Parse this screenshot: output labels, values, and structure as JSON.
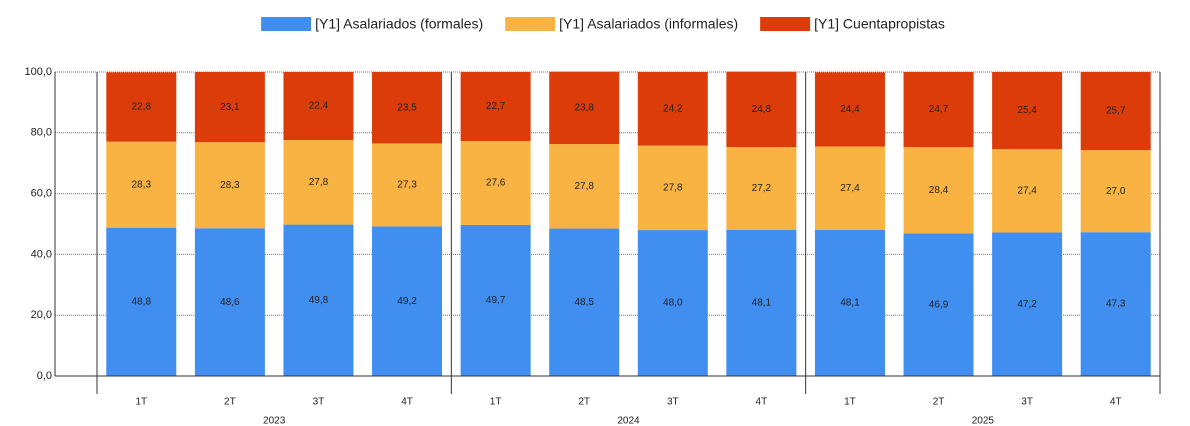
{
  "chart_data": {
    "type": "stacked_bar",
    "categories": [
      "1T",
      "2T",
      "3T",
      "4T",
      "1T",
      "2T",
      "3T",
      "4T",
      "1T",
      "2T",
      "3T",
      "4T"
    ],
    "groups": [
      "2023",
      "2024",
      "2025"
    ],
    "series": [
      {
        "name": "[Y1] Asalariados (formales)",
        "color": "#3f8ef0",
        "values": [
          48.8,
          48.6,
          49.8,
          49.2,
          49.7,
          48.5,
          48.0,
          48.1,
          48.1,
          46.9,
          47.2,
          47.3
        ],
        "value_labels": [
          "48,8",
          "48,6",
          "49,8",
          "49,2",
          "49,7",
          "48,5",
          "48,0",
          "48,1",
          "48,1",
          "46,9",
          "47,2",
          "47,3"
        ]
      },
      {
        "name": "[Y1] Asalariados (informales)",
        "color": "#f9b342",
        "values": [
          28.3,
          28.3,
          27.8,
          27.3,
          27.6,
          27.8,
          27.8,
          27.2,
          27.4,
          28.4,
          27.4,
          27.0
        ],
        "value_labels": [
          "28,3",
          "28,3",
          "27,8",
          "27,3",
          "27,6",
          "27,8",
          "27,8",
          "27,2",
          "27,4",
          "28,4",
          "27,4",
          "27,0"
        ]
      },
      {
        "name": "[Y1] Cuentapropistas",
        "color": "#dc3c0a",
        "values": [
          22.8,
          23.1,
          22.4,
          23.5,
          22.7,
          23.8,
          24.2,
          24.8,
          24.4,
          24.7,
          25.4,
          25.7
        ],
        "value_labels": [
          "22,8",
          "23,1",
          "22,4",
          "23,5",
          "22,7",
          "23,8",
          "24,2",
          "24,8",
          "24,4",
          "24,7",
          "25,4",
          "25,7"
        ]
      }
    ],
    "ylim": [
      0,
      100
    ],
    "yticks": [
      {
        "value": 0,
        "label": "0,0"
      },
      {
        "value": 20,
        "label": "20,0"
      },
      {
        "value": 40,
        "label": "40,0"
      },
      {
        "value": 60,
        "label": "60,0"
      },
      {
        "value": 80,
        "label": "80,0"
      },
      {
        "value": 100,
        "label": "100,0"
      }
    ],
    "grid": true,
    "legend": "top"
  }
}
